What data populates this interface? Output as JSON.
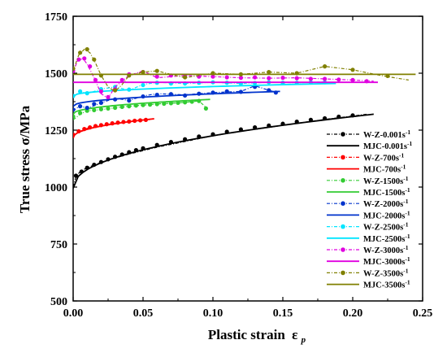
{
  "chart_data": {
    "type": "line",
    "xlabel": "Plastic strain",
    "xlabel_symbol": "ε",
    "xlabel_sub": "p",
    "ylabel": "True stress σ/MPa",
    "xlim": [
      0.0,
      0.25
    ],
    "ylim": [
      500,
      1750
    ],
    "xticks": [
      "0.00",
      "0.05",
      "0.10",
      "0.15",
      "0.20",
      "0.25"
    ],
    "yticks": [
      "500",
      "750",
      "1000",
      "1250",
      "1500",
      "1750"
    ],
    "grid": false,
    "legend_position": "right",
    "series": [
      {
        "name": "W-Z-0.001s",
        "sup": "-1",
        "kind": "experiment",
        "color": "#000000",
        "x": [
          0.0,
          0.002,
          0.005,
          0.01,
          0.02,
          0.03,
          0.04,
          0.05,
          0.06,
          0.08,
          0.1,
          0.12,
          0.14,
          0.16,
          0.18,
          0.2,
          0.21
        ],
        "y": [
          1000,
          1045,
          1068,
          1085,
          1108,
          1128,
          1145,
          1160,
          1175,
          1200,
          1225,
          1245,
          1262,
          1280,
          1297,
          1312,
          1320
        ],
        "markers_x": [
          0.002,
          0.006,
          0.01,
          0.015,
          0.02,
          0.025,
          0.03,
          0.035,
          0.04,
          0.045,
          0.05,
          0.06,
          0.07,
          0.08,
          0.09,
          0.1,
          0.11,
          0.12,
          0.13,
          0.14,
          0.15,
          0.16,
          0.17,
          0.18,
          0.19,
          0.2
        ],
        "markers_y": [
          1050,
          1068,
          1085,
          1098,
          1110,
          1122,
          1133,
          1143,
          1153,
          1162,
          1170,
          1185,
          1198,
          1210,
          1222,
          1232,
          1243,
          1253,
          1262,
          1270,
          1278,
          1287,
          1295,
          1302,
          1309,
          1315
        ]
      },
      {
        "name": "MJC-0.001s",
        "sup": "-1",
        "kind": "model",
        "color": "#000000",
        "curve": "sqrt",
        "x0": 0.0,
        "x1": 0.215,
        "y0": 995,
        "ya": 1320
      },
      {
        "name": "W-Z-700s",
        "sup": "-1",
        "kind": "experiment",
        "color": "#ff0000",
        "x": [
          0.0,
          0.005,
          0.01,
          0.02,
          0.03,
          0.04,
          0.05,
          0.055
        ],
        "y": [
          1225,
          1245,
          1258,
          1270,
          1280,
          1288,
          1294,
          1296
        ],
        "markers_x": [
          0.0,
          0.004,
          0.008,
          0.012,
          0.016,
          0.02,
          0.024,
          0.028,
          0.032,
          0.036,
          0.04,
          0.044,
          0.048,
          0.052
        ],
        "markers_y": [
          1230,
          1245,
          1255,
          1262,
          1268,
          1272,
          1276,
          1280,
          1283,
          1286,
          1288,
          1291,
          1293,
          1295
        ]
      },
      {
        "name": "MJC-700s",
        "sup": "-1",
        "kind": "model",
        "color": "#ff0000",
        "curve": "sqrt",
        "x0": 0.0,
        "x1": 0.058,
        "y0": 1215,
        "ya": 1300
      },
      {
        "name": "W-Z-1500s",
        "sup": "-1",
        "kind": "experiment",
        "color": "#33cc33",
        "x": [
          0.0,
          0.005,
          0.01,
          0.02,
          0.03,
          0.04,
          0.05,
          0.06,
          0.07,
          0.08,
          0.09,
          0.096
        ],
        "y": [
          1295,
          1320,
          1335,
          1340,
          1348,
          1355,
          1360,
          1365,
          1368,
          1372,
          1378,
          1345
        ],
        "markers_x": [
          0.0,
          0.005,
          0.01,
          0.015,
          0.02,
          0.025,
          0.03,
          0.035,
          0.04,
          0.045,
          0.05,
          0.055,
          0.06,
          0.065,
          0.07,
          0.075,
          0.08,
          0.085,
          0.09,
          0.095
        ],
        "markers_y": [
          1310,
          1325,
          1335,
          1338,
          1342,
          1345,
          1348,
          1352,
          1355,
          1358,
          1360,
          1362,
          1364,
          1366,
          1368,
          1370,
          1372,
          1375,
          1378,
          1345
        ]
      },
      {
        "name": "MJC-1500s",
        "sup": "-1",
        "kind": "model",
        "color": "#33cc33",
        "curve": "sqrt",
        "x0": 0.0,
        "x1": 0.098,
        "y0": 1320,
        "ya": 1385
      },
      {
        "name": "W-Z-2000s",
        "sup": "-1",
        "kind": "experiment",
        "color": "#0033cc",
        "x": [
          0.0,
          0.005,
          0.01,
          0.02,
          0.03,
          0.04,
          0.05,
          0.06,
          0.08,
          0.1,
          0.12,
          0.13,
          0.14,
          0.146
        ],
        "y": [
          1335,
          1358,
          1345,
          1370,
          1390,
          1380,
          1400,
          1410,
          1405,
          1415,
          1420,
          1445,
          1425,
          1415
        ],
        "markers_x": [
          0.0,
          0.005,
          0.01,
          0.015,
          0.02,
          0.03,
          0.04,
          0.05,
          0.06,
          0.07,
          0.08,
          0.09,
          0.1,
          0.11,
          0.12,
          0.13,
          0.14,
          0.145
        ],
        "markers_y": [
          1340,
          1355,
          1348,
          1365,
          1370,
          1385,
          1380,
          1398,
          1405,
          1408,
          1402,
          1410,
          1415,
          1420,
          1418,
          1440,
          1425,
          1415
        ]
      },
      {
        "name": "MJC-2000s",
        "sup": "-1",
        "kind": "model",
        "color": "#0033cc",
        "curve": "sqrt",
        "x0": 0.0,
        "x1": 0.148,
        "y0": 1355,
        "ya": 1420
      },
      {
        "name": "W-Z-2500s",
        "sup": "-1",
        "kind": "experiment",
        "color": "#00e5ff",
        "x": [
          0.0,
          0.005,
          0.01,
          0.02,
          0.03,
          0.04,
          0.05,
          0.06,
          0.08,
          0.1,
          0.12,
          0.14,
          0.16,
          0.18,
          0.186
        ],
        "y": [
          1395,
          1420,
          1410,
          1430,
          1440,
          1425,
          1450,
          1460,
          1455,
          1460,
          1455,
          1460,
          1458,
          1462,
          1455
        ],
        "markers_x": [
          0.0,
          0.005,
          0.01,
          0.02,
          0.03,
          0.04,
          0.05,
          0.06,
          0.07,
          0.08,
          0.09,
          0.1,
          0.11,
          0.12,
          0.13,
          0.14,
          0.15,
          0.16,
          0.17,
          0.18
        ],
        "markers_y": [
          1400,
          1420,
          1412,
          1430,
          1440,
          1428,
          1448,
          1458,
          1455,
          1455,
          1458,
          1460,
          1458,
          1455,
          1457,
          1460,
          1458,
          1458,
          1460,
          1460
        ]
      },
      {
        "name": "MJC-2500s",
        "sup": "-1",
        "kind": "model",
        "color": "#00e5ff",
        "curve": "sqrt",
        "x0": 0.0,
        "x1": 0.188,
        "y0": 1400,
        "ya": 1455
      },
      {
        "name": "W-Z-3000s",
        "sup": "-1",
        "kind": "experiment",
        "color": "#e000e0",
        "x": [
          0.0,
          0.003,
          0.007,
          0.01,
          0.015,
          0.02,
          0.025,
          0.03,
          0.04,
          0.05,
          0.06,
          0.08,
          0.1,
          0.12,
          0.14,
          0.16,
          0.18,
          0.2,
          0.215
        ],
        "y": [
          1500,
          1555,
          1565,
          1540,
          1480,
          1410,
          1390,
          1440,
          1490,
          1510,
          1480,
          1490,
          1485,
          1480,
          1478,
          1480,
          1475,
          1470,
          1465
        ],
        "markers_x": [
          0.0,
          0.004,
          0.008,
          0.012,
          0.016,
          0.02,
          0.025,
          0.03,
          0.035,
          0.04,
          0.05,
          0.06,
          0.07,
          0.08,
          0.09,
          0.1,
          0.11,
          0.12,
          0.13,
          0.14,
          0.15,
          0.16,
          0.17,
          0.18,
          0.19,
          0.2,
          0.21
        ],
        "markers_y": [
          1510,
          1560,
          1565,
          1530,
          1470,
          1420,
          1395,
          1430,
          1470,
          1495,
          1505,
          1485,
          1490,
          1488,
          1485,
          1485,
          1482,
          1480,
          1482,
          1478,
          1480,
          1478,
          1475,
          1475,
          1472,
          1470,
          1465
        ]
      },
      {
        "name": "MJC-3000s",
        "sup": "-1",
        "kind": "model",
        "color": "#e000e0",
        "curve": "flat",
        "x0": 0.0,
        "x1": 0.218,
        "y0": 1460,
        "ya": 1460
      },
      {
        "name": "W-Z-3500s",
        "sup": "-1",
        "kind": "experiment",
        "color": "#808000",
        "x": [
          0.0,
          0.004,
          0.008,
          0.012,
          0.016,
          0.02,
          0.025,
          0.03,
          0.035,
          0.04,
          0.05,
          0.06,
          0.07,
          0.08,
          0.1,
          0.12,
          0.14,
          0.16,
          0.18,
          0.2,
          0.22,
          0.24
        ],
        "y": [
          1510,
          1580,
          1605,
          1590,
          1545,
          1490,
          1440,
          1420,
          1450,
          1490,
          1505,
          1510,
          1495,
          1480,
          1500,
          1495,
          1505,
          1500,
          1530,
          1515,
          1490,
          1470
        ],
        "markers_x": [
          0.0,
          0.005,
          0.01,
          0.015,
          0.02,
          0.03,
          0.04,
          0.05,
          0.06,
          0.08,
          0.1,
          0.12,
          0.14,
          0.16,
          0.18,
          0.2,
          0.225
        ],
        "markers_y": [
          1520,
          1590,
          1605,
          1560,
          1490,
          1425,
          1490,
          1505,
          1510,
          1482,
          1500,
          1495,
          1505,
          1500,
          1530,
          1515,
          1488
        ]
      },
      {
        "name": "MJC-3500s",
        "sup": "-1",
        "kind": "model",
        "color": "#808000",
        "curve": "flat",
        "x0": 0.0,
        "x1": 0.245,
        "y0": 1495,
        "ya": 1495
      }
    ]
  }
}
